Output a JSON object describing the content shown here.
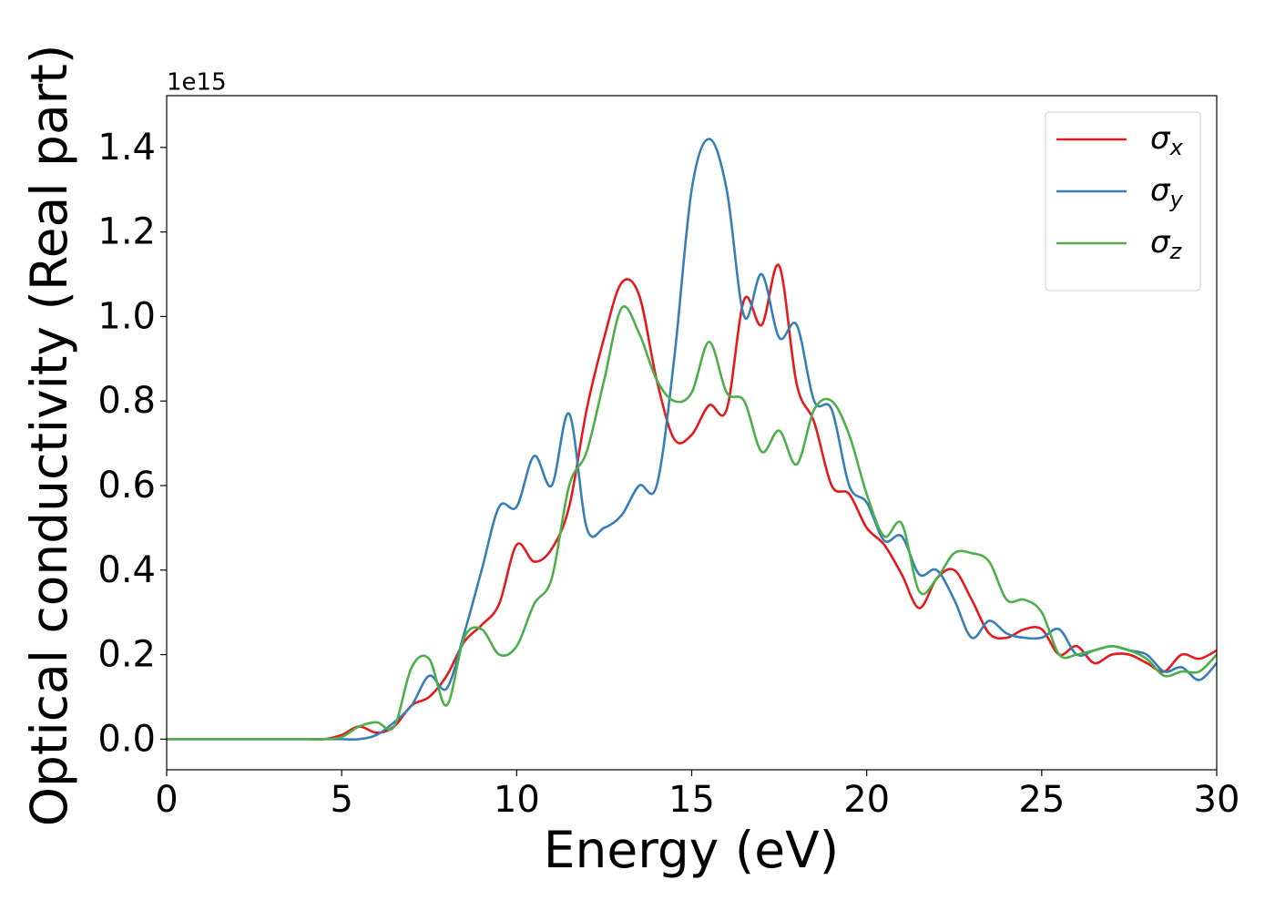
{
  "chart_data": {
    "type": "line",
    "xlabel": "Energy (eV)",
    "ylabel": "Optical conductivity (Real part)",
    "offset_label": "1e15",
    "x": [
      0,
      0.5,
      1,
      1.5,
      2,
      2.5,
      3,
      3.5,
      4,
      4.5,
      5,
      5.5,
      6,
      6.5,
      7,
      7.5,
      8,
      8.5,
      9,
      9.5,
      10,
      10.5,
      11,
      11.5,
      12,
      12.5,
      13,
      13.5,
      14,
      14.5,
      15,
      15.5,
      16,
      16.5,
      17,
      17.5,
      18,
      18.5,
      19,
      19.5,
      20,
      20.5,
      21,
      21.5,
      22,
      22.5,
      23,
      23.5,
      24,
      24.5,
      25,
      25.5,
      26,
      26.5,
      27,
      27.5,
      28,
      28.5,
      29,
      29.5,
      30
    ],
    "series": [
      {
        "name": "σx",
        "color": "#e41a1c",
        "values": [
          0,
          0,
          0,
          0,
          0,
          0,
          0,
          0,
          0,
          0,
          0.01,
          0.03,
          0.015,
          0.03,
          0.08,
          0.1,
          0.15,
          0.23,
          0.27,
          0.32,
          0.46,
          0.42,
          0.45,
          0.55,
          0.78,
          0.95,
          1.08,
          1.05,
          0.85,
          0.71,
          0.72,
          0.79,
          0.78,
          1.04,
          0.98,
          1.12,
          0.84,
          0.75,
          0.6,
          0.58,
          0.5,
          0.46,
          0.39,
          0.31,
          0.38,
          0.4,
          0.33,
          0.25,
          0.24,
          0.26,
          0.26,
          0.2,
          0.22,
          0.18,
          0.2,
          0.2,
          0.18,
          0.16,
          0.2,
          0.19,
          0.21
        ]
      },
      {
        "name": "σy",
        "color": "#377eb8",
        "values": [
          0,
          0,
          0,
          0,
          0,
          0,
          0,
          0,
          0,
          0,
          0,
          0,
          0.01,
          0.04,
          0.08,
          0.15,
          0.12,
          0.25,
          0.4,
          0.55,
          0.55,
          0.67,
          0.6,
          0.77,
          0.5,
          0.5,
          0.53,
          0.6,
          0.6,
          0.9,
          1.3,
          1.42,
          1.3,
          1.0,
          1.1,
          0.95,
          0.98,
          0.8,
          0.78,
          0.6,
          0.56,
          0.47,
          0.48,
          0.39,
          0.4,
          0.33,
          0.24,
          0.28,
          0.25,
          0.24,
          0.24,
          0.26,
          0.2,
          0.21,
          0.22,
          0.21,
          0.2,
          0.16,
          0.17,
          0.14,
          0.18
        ]
      },
      {
        "name": "σz",
        "color": "#4daf4a",
        "values": [
          0,
          0,
          0,
          0,
          0,
          0,
          0,
          0,
          0,
          0,
          0.005,
          0.03,
          0.04,
          0.03,
          0.17,
          0.19,
          0.08,
          0.24,
          0.26,
          0.2,
          0.22,
          0.32,
          0.38,
          0.6,
          0.68,
          0.85,
          1.02,
          0.96,
          0.85,
          0.8,
          0.82,
          0.94,
          0.82,
          0.8,
          0.68,
          0.73,
          0.65,
          0.78,
          0.8,
          0.72,
          0.58,
          0.48,
          0.51,
          0.35,
          0.38,
          0.44,
          0.44,
          0.42,
          0.33,
          0.33,
          0.3,
          0.2,
          0.2,
          0.21,
          0.22,
          0.21,
          0.19,
          0.15,
          0.16,
          0.16,
          0.2
        ]
      }
    ],
    "xlim": [
      0,
      30
    ],
    "xticks": [
      0,
      5,
      10,
      15,
      20,
      25,
      30
    ],
    "ylim": [
      -0.0725,
      1.5225
    ],
    "yticks": [
      {
        "value": 0,
        "label": "0.0"
      },
      0.2,
      0.4,
      0.6,
      0.8,
      {
        "value": 1,
        "label": "1.0"
      },
      1.2,
      1.4
    ],
    "grid": false,
    "legend": "upper right"
  }
}
